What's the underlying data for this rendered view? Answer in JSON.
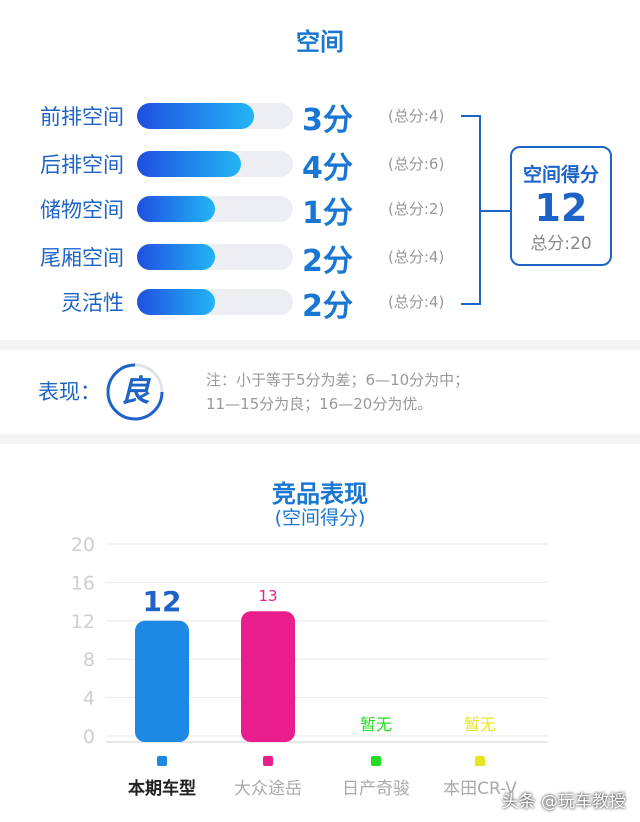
{
  "title": "空间",
  "rows": [
    {
      "label": "前排空间",
      "score": 3,
      "score_text": "3分",
      "total_text": "(总分:4)",
      "max": 4
    },
    {
      "label": "后排空间",
      "score": 4,
      "score_text": "4分",
      "total_text": "(总分:6)",
      "max": 6
    },
    {
      "label": "储物空间",
      "score": 1,
      "score_text": "1分",
      "total_text": "(总分:2)",
      "max": 2
    },
    {
      "label": "尾厢空间",
      "score": 2,
      "score_text": "2分",
      "total_text": "(总分:4)",
      "max": 4
    },
    {
      "label": "灵活性",
      "score": 2,
      "score_text": "2分",
      "total_text": "(总分:4)",
      "max": 4
    }
  ],
  "summary": {
    "label": "空间得分",
    "value": "12",
    "total_text": "总分:20"
  },
  "performance": {
    "label": "表现：",
    "grade": "良",
    "note_line1": "注：小于等于5分为差；6—10分为中；",
    "note_line2": "11—15分为良；16—20分为优。"
  },
  "chart_data": {
    "type": "bar",
    "title": "竞品表现",
    "subtitle": "(空间得分)",
    "categories": [
      "本期车型",
      "大众途岳",
      "日产奇骏",
      "本田CR-V"
    ],
    "values": [
      12,
      13,
      null,
      null
    ],
    "data_labels": [
      "12",
      "13",
      "暂无",
      "暂无"
    ],
    "colors": [
      "#1e88e5",
      "#e91e8c",
      "#22dd22",
      "#e6e620"
    ],
    "yticks": [
      "20",
      "16",
      "12",
      "8",
      "4",
      "0"
    ],
    "ylim": [
      0,
      20
    ],
    "grid": true
  },
  "watermark": "头条 @玩车教授"
}
